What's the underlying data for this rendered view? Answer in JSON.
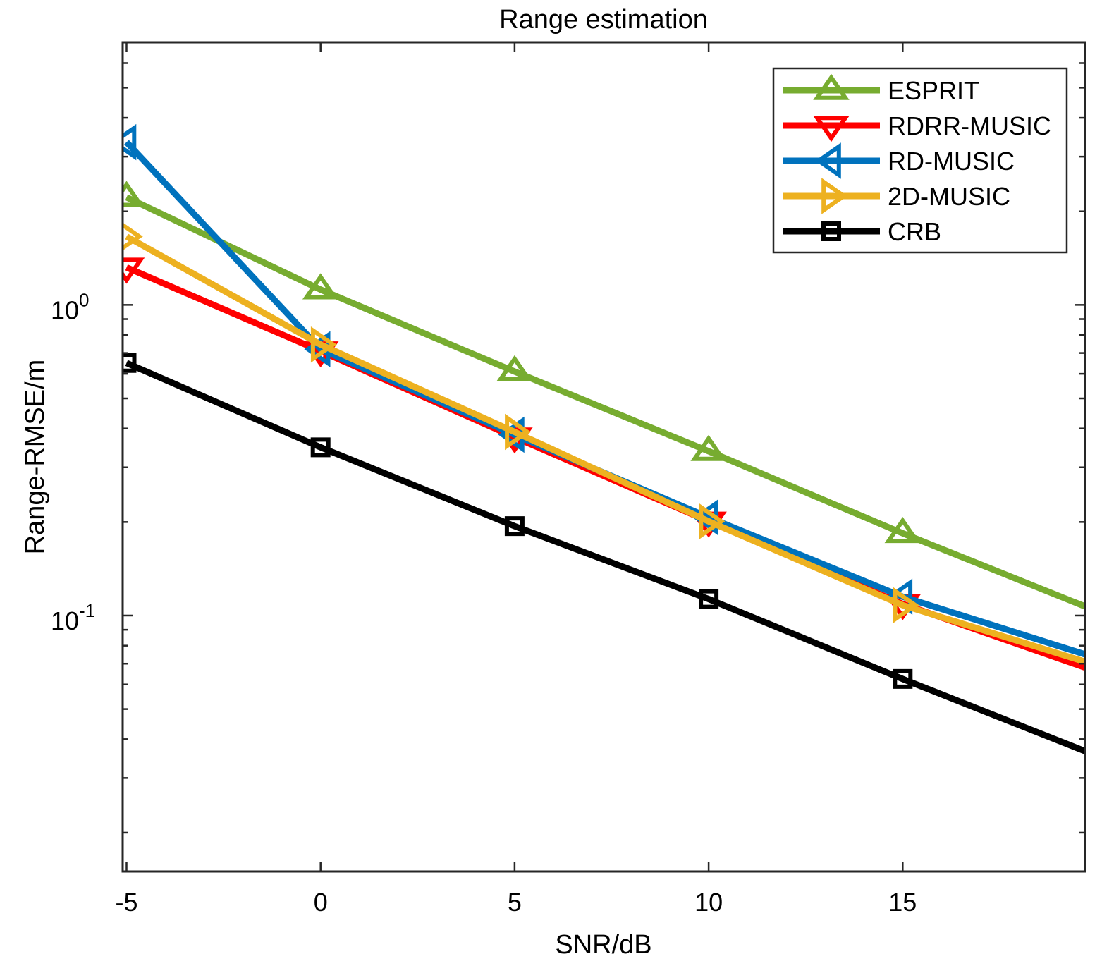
{
  "chart_data": {
    "type": "line",
    "title": "Range estimation",
    "xlabel": "SNR/dB",
    "ylabel": "Range-RMSE/m",
    "yscale": "log",
    "xlim": [
      -5.1,
      19.7
    ],
    "ylim": [
      0.015,
      7.0
    ],
    "xticks": [
      -5,
      0,
      5,
      10,
      15
    ],
    "xtick_labels": [
      "-5",
      "0",
      "5",
      "10",
      "15"
    ],
    "yticks": [
      {
        "value": 1.0,
        "base": "10",
        "exp": "0"
      },
      {
        "value": 0.1,
        "base": "10",
        "exp": "-1"
      }
    ],
    "legend_position": "top-right",
    "series": [
      {
        "name": "ESPRIT",
        "color": "#77AC30",
        "marker": "triangle-up",
        "x": [
          -5,
          0,
          5,
          10,
          15,
          19.7
        ],
        "values": [
          2.22,
          1.12,
          0.61,
          0.338,
          0.184,
          0.107
        ]
      },
      {
        "name": "RDRR-MUSIC",
        "color": "#FF0000",
        "marker": "triangle-down",
        "x": [
          -5,
          0,
          5,
          10,
          15,
          19.7
        ],
        "values": [
          1.32,
          0.71,
          0.375,
          0.201,
          0.109,
          0.068
        ]
      },
      {
        "name": "RD-MUSIC",
        "color": "#0072BD",
        "marker": "triangle-left",
        "x": [
          -5,
          0,
          5,
          10,
          15,
          19.7
        ],
        "values": [
          3.34,
          0.72,
          0.382,
          0.207,
          0.115,
          0.075
        ]
      },
      {
        "name": "2D-MUSIC",
        "color": "#EDB120",
        "marker": "triangle-right",
        "x": [
          -5,
          0,
          5,
          10,
          15,
          19.7
        ],
        "values": [
          1.66,
          0.745,
          0.39,
          0.201,
          0.108,
          0.071
        ]
      },
      {
        "name": "CRB",
        "color": "#000000",
        "marker": "square",
        "x": [
          -5,
          0,
          5,
          10,
          15,
          19.7
        ],
        "values": [
          0.65,
          0.348,
          0.194,
          0.113,
          0.0625,
          0.0366
        ]
      }
    ]
  }
}
